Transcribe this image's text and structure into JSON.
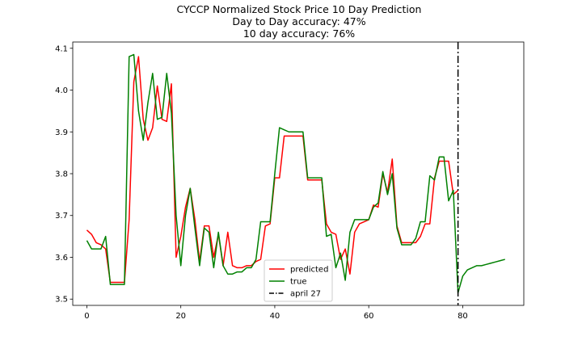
{
  "title_lines": [
    "CYCCP Normalized Stock Price 10 Day Prediction",
    "Day to Day accuracy: 47%",
    "10 day accuracy: 76%"
  ],
  "chart_data": {
    "type": "line",
    "xlim": [
      -3,
      93
    ],
    "ylim": [
      3.485,
      4.115
    ],
    "xticks": [
      0,
      20,
      40,
      60,
      80
    ],
    "yticks": [
      3.5,
      3.6,
      3.7,
      3.8,
      3.9,
      4.0,
      4.1
    ],
    "series": [
      {
        "name": "predicted",
        "color": "#ff0000",
        "x": [
          0,
          1,
          2,
          3,
          4,
          5,
          6,
          7,
          8,
          9,
          10,
          11,
          12,
          13,
          14,
          15,
          16,
          17,
          18,
          19,
          20,
          21,
          22,
          23,
          24,
          25,
          26,
          27,
          28,
          29,
          30,
          31,
          32,
          33,
          34,
          35,
          36,
          37,
          38,
          39,
          40,
          41,
          42,
          43,
          44,
          45,
          46,
          47,
          48,
          49,
          50,
          51,
          52,
          53,
          54,
          55,
          56,
          57,
          58,
          59,
          60,
          61,
          62,
          63,
          64,
          65,
          66,
          67,
          68,
          69,
          70,
          71,
          72,
          73,
          74,
          75,
          76,
          77,
          78,
          79
        ],
        "y": [
          3.665,
          3.655,
          3.635,
          3.63,
          3.62,
          3.54,
          3.54,
          3.54,
          3.54,
          3.69,
          4.02,
          4.08,
          3.93,
          3.88,
          3.91,
          4.01,
          3.93,
          3.925,
          4.015,
          3.6,
          3.65,
          3.72,
          3.765,
          3.69,
          3.59,
          3.675,
          3.675,
          3.6,
          3.655,
          3.58,
          3.66,
          3.58,
          3.575,
          3.575,
          3.58,
          3.58,
          3.59,
          3.595,
          3.675,
          3.68,
          3.79,
          3.79,
          3.89,
          3.89,
          3.89,
          3.89,
          3.89,
          3.785,
          3.785,
          3.785,
          3.785,
          3.68,
          3.66,
          3.655,
          3.595,
          3.62,
          3.56,
          3.66,
          3.68,
          3.685,
          3.69,
          3.725,
          3.72,
          3.8,
          3.755,
          3.835,
          3.675,
          3.635,
          3.635,
          3.635,
          3.635,
          3.65,
          3.68,
          3.68,
          3.79,
          3.83,
          3.83,
          3.83,
          3.75,
          3.76
        ]
      },
      {
        "name": "true",
        "color": "#008000",
        "x": [
          0,
          1,
          2,
          3,
          4,
          5,
          6,
          7,
          8,
          9,
          10,
          11,
          12,
          13,
          14,
          15,
          16,
          17,
          18,
          19,
          20,
          21,
          22,
          23,
          24,
          25,
          26,
          27,
          28,
          29,
          30,
          31,
          32,
          33,
          34,
          35,
          36,
          37,
          38,
          39,
          40,
          41,
          42,
          43,
          44,
          45,
          46,
          47,
          48,
          49,
          50,
          51,
          52,
          53,
          54,
          55,
          56,
          57,
          58,
          59,
          60,
          61,
          62,
          63,
          64,
          65,
          66,
          67,
          68,
          69,
          70,
          71,
          72,
          73,
          74,
          75,
          76,
          77,
          78,
          79,
          80,
          81,
          82,
          83,
          84,
          85,
          86,
          87,
          88,
          89
        ],
        "y": [
          3.64,
          3.62,
          3.62,
          3.62,
          3.65,
          3.535,
          3.535,
          3.535,
          3.535,
          4.08,
          4.085,
          3.95,
          3.88,
          3.97,
          4.04,
          3.93,
          3.935,
          4.04,
          3.945,
          3.7,
          3.58,
          3.7,
          3.765,
          3.67,
          3.58,
          3.67,
          3.66,
          3.575,
          3.66,
          3.58,
          3.56,
          3.56,
          3.565,
          3.565,
          3.575,
          3.575,
          3.595,
          3.685,
          3.685,
          3.685,
          3.8,
          3.91,
          3.905,
          3.9,
          3.9,
          3.9,
          3.9,
          3.79,
          3.79,
          3.79,
          3.79,
          3.65,
          3.655,
          3.575,
          3.61,
          3.545,
          3.66,
          3.69,
          3.69,
          3.69,
          3.69,
          3.72,
          3.73,
          3.805,
          3.75,
          3.8,
          3.67,
          3.63,
          3.63,
          3.63,
          3.645,
          3.685,
          3.685,
          3.795,
          3.785,
          3.84,
          3.84,
          3.735,
          3.76,
          3.515,
          3.555,
          3.57,
          3.575,
          3.58,
          3.58,
          3.583,
          3.586,
          3.589,
          3.592,
          3.595
        ]
      }
    ],
    "vline": {
      "name": "april 27",
      "x": 79,
      "color": "#000000",
      "style": "dashdot"
    },
    "legend": {
      "placement": "lower-center",
      "entries": [
        {
          "label": "predicted",
          "color": "#ff0000",
          "style": "solid"
        },
        {
          "label": "true",
          "color": "#008000",
          "style": "solid"
        },
        {
          "label": "april 27",
          "color": "#000000",
          "style": "dashdot"
        }
      ]
    },
    "grid": false
  }
}
